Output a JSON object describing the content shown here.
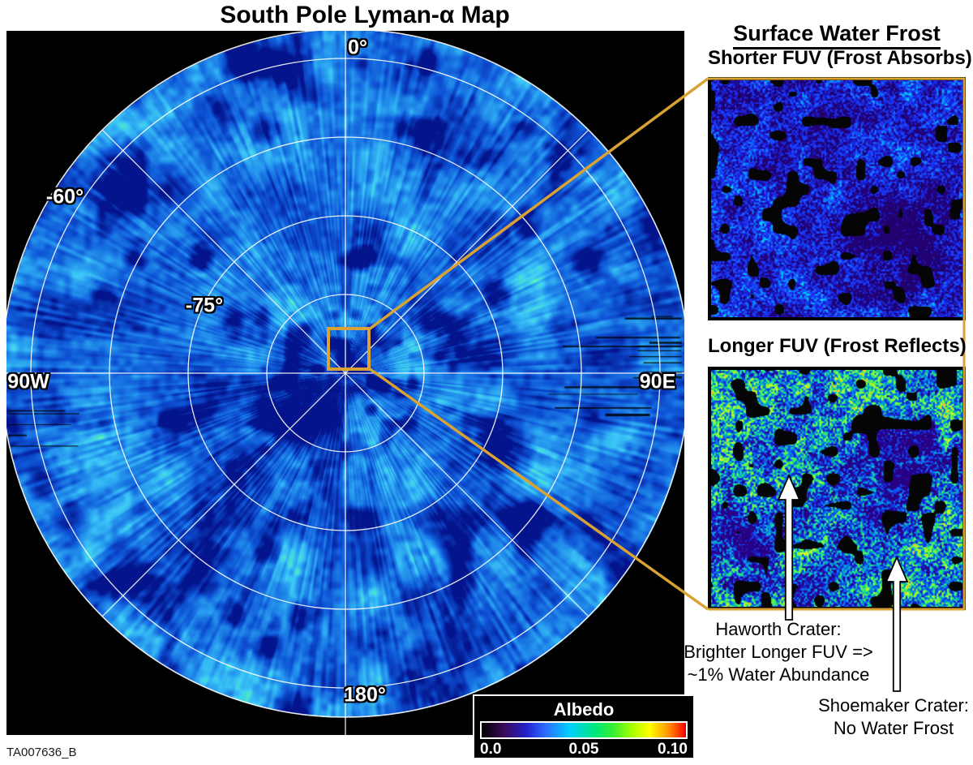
{
  "figure": {
    "id": "TA007636_B"
  },
  "map": {
    "title": "South Pole Lyman-α Map",
    "labels": {
      "lon0": "0°",
      "lat60": "-60°",
      "lat75": "-75°",
      "lon90w": "90W",
      "lon90e": "90E",
      "lon180": "180°"
    }
  },
  "frost_panel": {
    "heading": "Surface Water Frost",
    "shorter_fuv_label": "Shorter FUV (Frost Absorbs)",
    "longer_fuv_label": "Longer FUV (Frost Reflects)"
  },
  "annotations": {
    "haworth_line1": "Haworth Crater:",
    "haworth_line2": "Brighter Longer FUV =>",
    "haworth_line3": "~1% Water Abundance",
    "shoemaker_line1": "Shoemaker Crater:",
    "shoemaker_line2": "No Water Frost"
  },
  "colorbar": {
    "title": "Albedo",
    "tick_min": "0.0",
    "tick_mid": "0.05",
    "tick_max": "0.10"
  },
  "colors": {
    "accent_orange": "#d9a233",
    "grid_white": "#ffffff",
    "background_black": "#000000"
  }
}
